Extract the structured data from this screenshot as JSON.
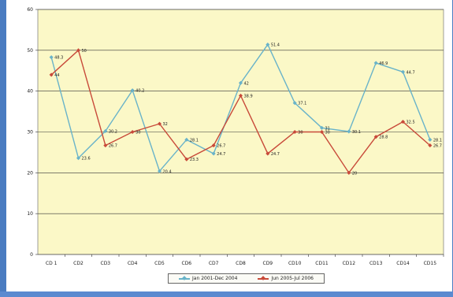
{
  "colors": {
    "plot_background": "#fbf8c7",
    "series_1": "#69b3c9",
    "series_2": "#c84a3a",
    "frame": "#4a7cc1"
  },
  "legend": {
    "series_1_label": "Jan 2001-Dec 2004",
    "series_2_label": "Jun 2005-Jul 2006"
  },
  "chart_data": {
    "type": "line",
    "title": "",
    "xlabel": "",
    "ylabel": "",
    "categories": [
      "CD 1",
      "CD2",
      "CD3",
      "CD4",
      "CD5",
      "CD6",
      "CD7",
      "CD8",
      "CD9",
      "CD10",
      "CD11",
      "CD12",
      "CD13",
      "CD14",
      "CD15"
    ],
    "ylim": [
      0,
      60
    ],
    "yticks": [
      0,
      10,
      20,
      30,
      40,
      50,
      60
    ],
    "grid": true,
    "legend_position": "bottom",
    "series": [
      {
        "name": "Jan 2001-Dec 2004",
        "values": [
          48.3,
          23.6,
          30.2,
          40.2,
          20.4,
          28.1,
          24.7,
          42,
          51.4,
          37.1,
          31,
          30.1,
          46.9,
          44.7,
          28.1
        ],
        "labels": [
          "48.3",
          "23.6",
          "30.2",
          "40.2",
          "20.4",
          "28.1",
          "24.7",
          "42",
          "51.4",
          "37.1",
          "31",
          "30.1",
          "46.9",
          "44.7",
          "28.1"
        ]
      },
      {
        "name": "Jun 2005-Jul 2006",
        "values": [
          44,
          50,
          26.7,
          30,
          32,
          23.3,
          26.7,
          38.9,
          24.7,
          30,
          30,
          20,
          28.8,
          32.5,
          26.7
        ],
        "labels": [
          "44",
          "50",
          "26.7",
          "30",
          "32",
          "23.3",
          "26.7",
          "38.9",
          "24.7",
          "30",
          "30",
          "20",
          "28.8",
          "32.5",
          "26.7"
        ]
      }
    ]
  }
}
